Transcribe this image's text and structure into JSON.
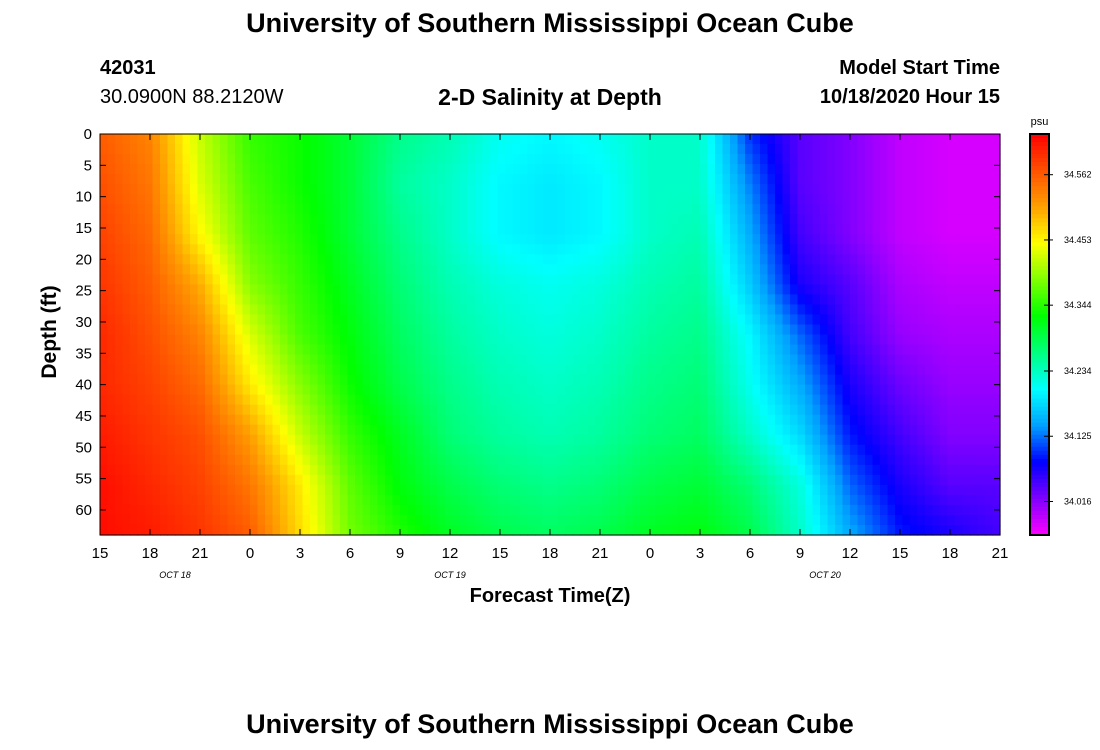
{
  "page": {
    "title_top": "University of Southern Mississippi Ocean Cube",
    "title_bottom": "University of Southern Mississippi Ocean Cube",
    "station_id": "42031",
    "station_coords": "30.0900N 88.2120W",
    "model_start_label": "Model Start Time",
    "model_start_value": "10/18/2020 Hour 15"
  },
  "chart_data": {
    "type": "heatmap",
    "title": "2-D Salinity at Depth",
    "xlabel": "Forecast Time(Z)",
    "ylabel": "Depth (ft)",
    "colorbar_unit": "psu",
    "x_tick_labels": [
      "15",
      "18",
      "21",
      "0",
      "3",
      "6",
      "9",
      "12",
      "15",
      "18",
      "21",
      "0",
      "3",
      "6",
      "9",
      "12",
      "15",
      "18",
      "21"
    ],
    "date_labels": [
      {
        "label": "OCT 18",
        "tick_index": 1.5
      },
      {
        "label": "OCT 19",
        "tick_index": 7
      },
      {
        "label": "OCT 20",
        "tick_index": 14.5
      }
    ],
    "x_range_hours": [
      0,
      54
    ],
    "y_ticks": [
      0,
      5,
      10,
      15,
      20,
      25,
      30,
      35,
      40,
      45,
      50,
      55,
      60
    ],
    "y_range": [
      0,
      64
    ],
    "y_inverted": true,
    "colorbar_ticks": [
      34.562,
      34.453,
      34.344,
      34.234,
      34.125,
      34.016
    ],
    "color_range": [
      33.96,
      34.63
    ],
    "colormap": [
      "#ff00ff",
      "#8000ff",
      "#0000ff",
      "#00a0ff",
      "#00ffff",
      "#00ff80",
      "#00ff00",
      "#80ff00",
      "#ffff00",
      "#ffa000",
      "#ff5000",
      "#ff0000"
    ],
    "grid": false,
    "x_hours": [
      0,
      3,
      6,
      9,
      12,
      15,
      18,
      21,
      24,
      27,
      30,
      33,
      36,
      39,
      42,
      45,
      48,
      51,
      54
    ],
    "depth_levels": [
      0,
      8,
      16,
      24,
      32,
      40,
      48,
      56,
      64
    ],
    "salinity": [
      [
        34.56,
        34.53,
        34.42,
        34.35,
        34.33,
        34.3,
        34.26,
        34.24,
        34.21,
        34.2,
        34.21,
        34.23,
        34.23,
        34.1,
        34.04,
        34.02,
        33.99,
        33.98,
        33.98
      ],
      [
        34.57,
        34.54,
        34.43,
        34.36,
        34.33,
        34.3,
        34.25,
        34.23,
        34.2,
        34.19,
        34.2,
        34.23,
        34.23,
        34.13,
        34.04,
        34.02,
        33.99,
        33.98,
        33.98
      ],
      [
        34.58,
        34.55,
        34.45,
        34.37,
        34.34,
        34.3,
        34.26,
        34.23,
        34.2,
        34.19,
        34.2,
        34.23,
        34.24,
        34.15,
        34.05,
        34.02,
        33.99,
        33.98,
        33.98
      ],
      [
        34.59,
        34.56,
        34.5,
        34.39,
        34.35,
        34.31,
        34.27,
        34.24,
        34.22,
        34.21,
        34.22,
        34.24,
        34.25,
        34.17,
        34.07,
        34.04,
        34.0,
        33.99,
        33.99
      ],
      [
        34.6,
        34.57,
        34.53,
        34.43,
        34.36,
        34.32,
        34.28,
        34.25,
        34.23,
        34.22,
        34.23,
        34.25,
        34.26,
        34.2,
        34.12,
        34.05,
        34.01,
        34.0,
        34.0
      ],
      [
        34.6,
        34.58,
        34.55,
        34.46,
        34.39,
        34.33,
        34.29,
        34.26,
        34.24,
        34.23,
        34.24,
        34.26,
        34.27,
        34.21,
        34.15,
        34.07,
        34.03,
        34.01,
        34.01
      ],
      [
        34.61,
        34.59,
        34.57,
        34.51,
        34.42,
        34.35,
        34.31,
        34.27,
        34.25,
        34.24,
        34.25,
        34.27,
        34.28,
        34.23,
        34.18,
        34.09,
        34.05,
        34.02,
        34.02
      ],
      [
        34.62,
        34.6,
        34.58,
        34.54,
        34.46,
        34.37,
        34.32,
        34.29,
        34.27,
        34.26,
        34.27,
        34.29,
        34.3,
        34.27,
        34.22,
        34.12,
        34.07,
        34.04,
        34.04
      ],
      [
        34.62,
        34.61,
        34.59,
        34.56,
        34.47,
        34.38,
        34.34,
        34.31,
        34.29,
        34.28,
        34.29,
        34.31,
        34.32,
        34.29,
        34.23,
        34.15,
        34.09,
        34.07,
        34.05
      ]
    ]
  }
}
